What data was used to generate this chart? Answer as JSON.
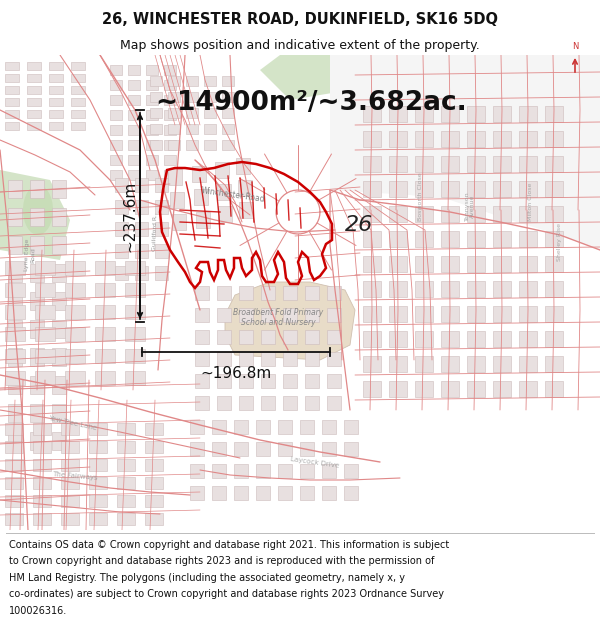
{
  "title_line1": "26, WINCHESTER ROAD, DUKINFIELD, SK16 5DQ",
  "title_line2": "Map shows position and indicative extent of the property.",
  "area_text": "~14900m²/~3.682ac.",
  "dim1_text": "~237.6m",
  "dim2_text": "~196.8m",
  "label_26": "26",
  "bg_color": "#ffffff",
  "map_bg": "#ffffff",
  "road_color": "#e08888",
  "road_color_bold": "#cc3333",
  "building_fill": "#e8e0e0",
  "building_edge": "#ccbbbb",
  "green_fill": "#d4e4c8",
  "tan_fill": "#e8dcc8",
  "prop_color": "#cc0000",
  "dim_arrow_color": "#111111",
  "text_color": "#111111",
  "dim_color": "#111111",
  "title_fontsize": 10.5,
  "subtitle_fontsize": 9,
  "area_fontsize": 19,
  "dim_fontsize": 11,
  "footer_fontsize": 7.0,
  "label_fontsize": 16,
  "footer_lines": [
    "Contains OS data © Crown copyright and database right 2021. This information is subject",
    "to Crown copyright and database rights 2023 and is reproduced with the permission of",
    "HM Land Registry. The polygons (including the associated geometry, namely x, y",
    "co-ordinates) are subject to Crown copyright and database rights 2023 Ordnance Survey",
    "100026316."
  ]
}
